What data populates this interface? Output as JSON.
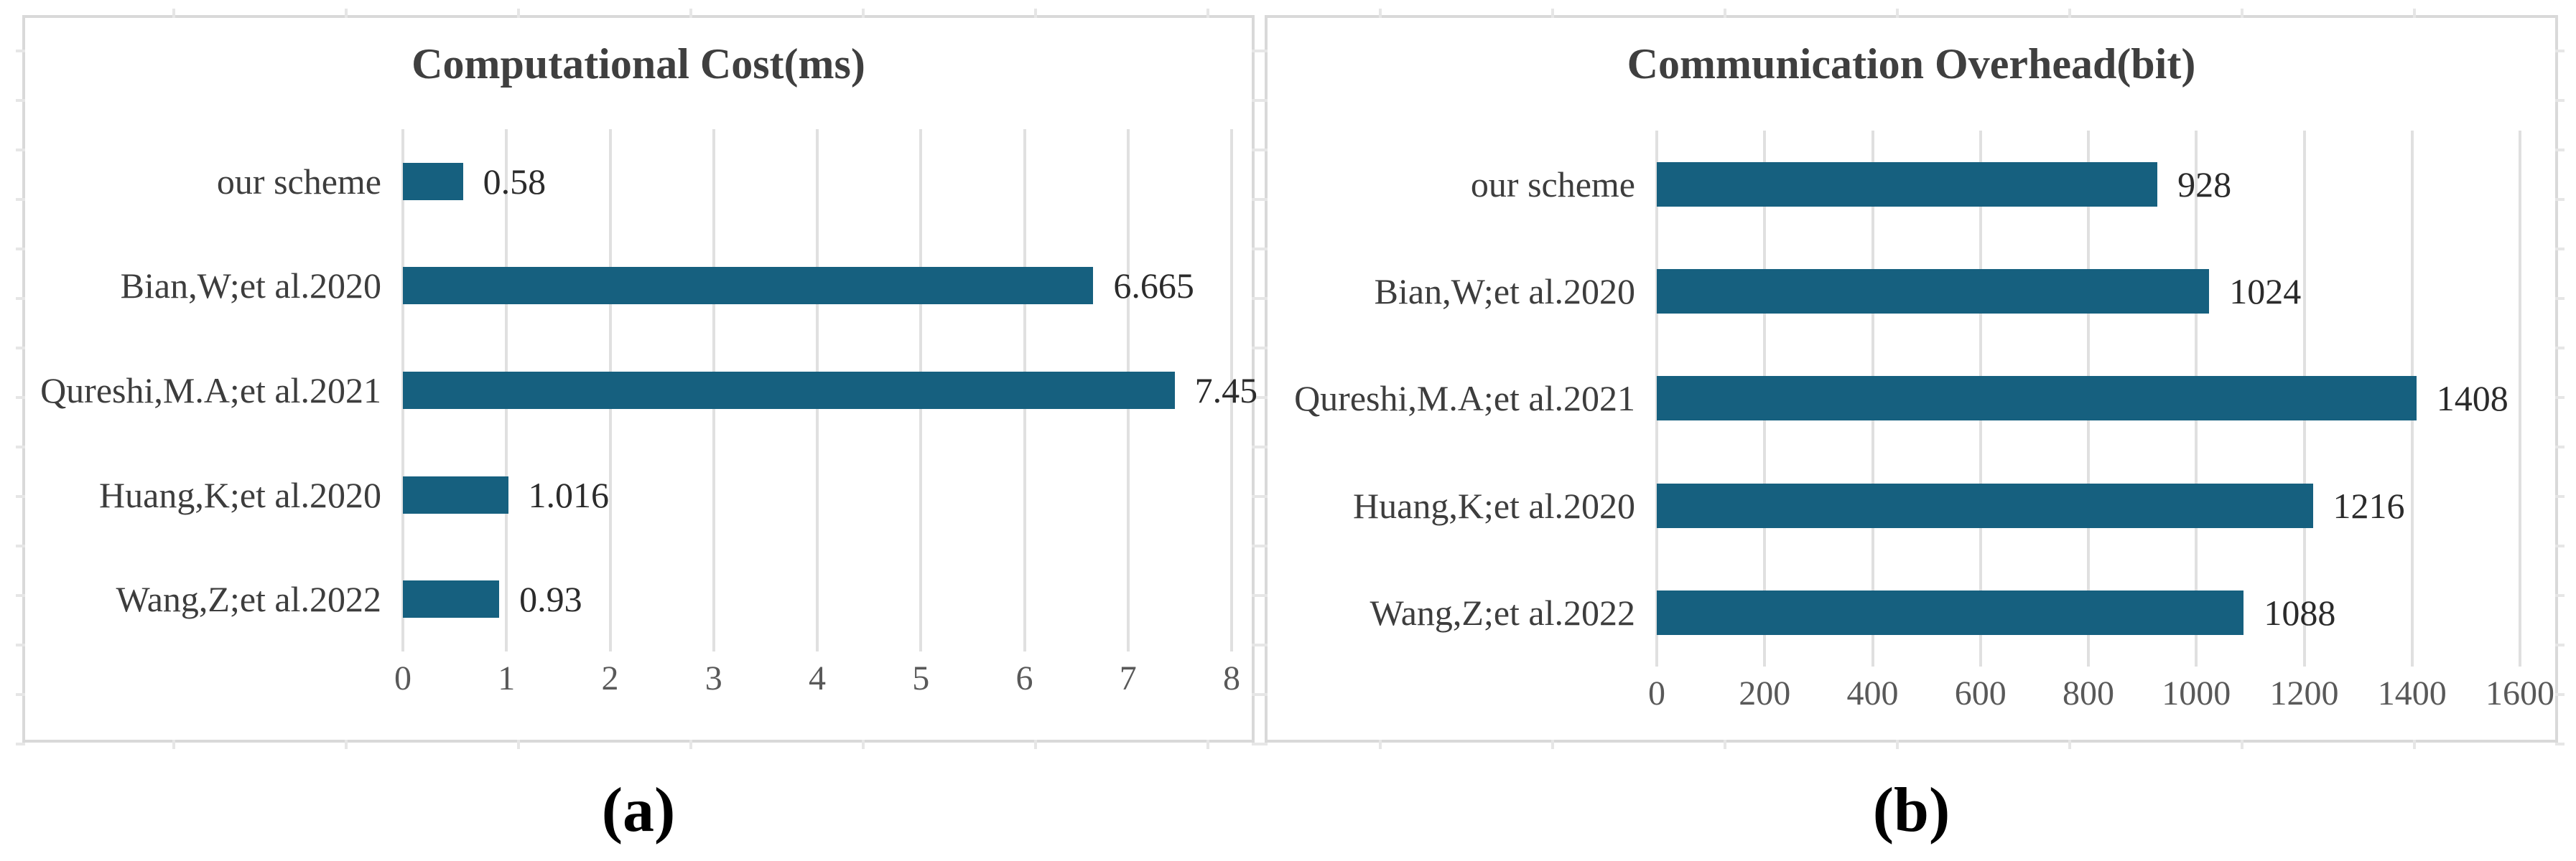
{
  "figure": {
    "captions": {
      "a": "(a)",
      "b": "(b)"
    }
  },
  "colors": {
    "bar": "#16607F",
    "gridline": "#E0E0E0",
    "panel_border": "#D9D9D9",
    "title_text": "#3F3F3F",
    "label_text": "#3D3D3D",
    "tick_text": "#595959",
    "background": "#FFFFFF"
  },
  "chart_data": [
    {
      "id": "a",
      "type": "bar",
      "orientation": "horizontal",
      "title": "Computational Cost(ms)",
      "categories": [
        "our scheme",
        "Bian,W;et al.2020",
        "Qureshi,M.A;et al.2021",
        "Huang,K;et al.2020",
        "Wang,Z;et al.2022"
      ],
      "values": [
        0.58,
        6.665,
        7.45,
        1.016,
        0.93
      ],
      "value_labels": [
        "0.58",
        "6.665",
        "7.45",
        "1.016",
        "0.93"
      ],
      "xlabel": "",
      "ylabel": "",
      "xlim": [
        0,
        8
      ],
      "xticks": [
        0,
        1,
        2,
        3,
        4,
        5,
        6,
        7,
        8
      ],
      "grid": true,
      "legend": false
    },
    {
      "id": "b",
      "type": "bar",
      "orientation": "horizontal",
      "title": "Communication Overhead(bit)",
      "categories": [
        "our scheme",
        "Bian,W;et al.2020",
        "Qureshi,M.A;et al.2021",
        "Huang,K;et al.2020",
        "Wang,Z;et al.2022"
      ],
      "values": [
        928,
        1024,
        1408,
        1216,
        1088
      ],
      "value_labels": [
        "928",
        "1024",
        "1408",
        "1216",
        "1088"
      ],
      "xlabel": "",
      "ylabel": "",
      "xlim": [
        0,
        1600
      ],
      "xticks": [
        0,
        200,
        400,
        600,
        800,
        1000,
        1200,
        1400,
        1600
      ],
      "grid": true,
      "legend": false
    }
  ]
}
